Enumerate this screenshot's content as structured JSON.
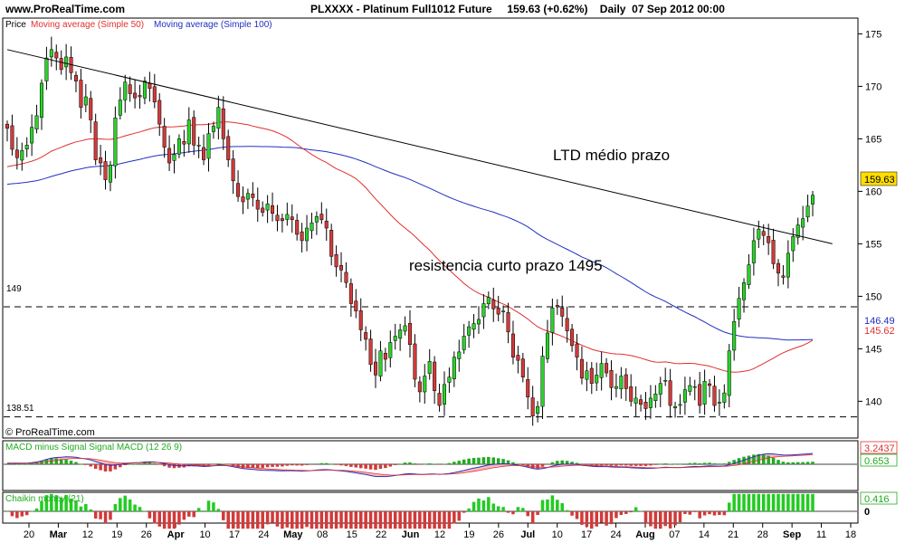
{
  "header": {
    "site": "www.ProRealTime.com",
    "instrument": "PLXXXX - Platinum Full1012 Future",
    "last": "159.63 (+0.62%)",
    "period": "Daily  07 Sep 2012 00:00"
  },
  "legend": {
    "price": "Price",
    "ma50": "Moving average (Simple 50)",
    "ma100": "Moving average (Simple 100)"
  },
  "watermark": "© ProRealTime.com",
  "annotations": {
    "trendline_label": "LTD médio prazo",
    "resistance_label": "resistencia curto prazo 1495"
  },
  "colors": {
    "up": "#2bd22b",
    "down": "#d23a3a",
    "ma50": "#e03030",
    "ma100": "#2030c0",
    "trendline": "#000000",
    "macd_line": "#3030c0",
    "signal_fill": "#f3a0a0",
    "hist": "#22aa22",
    "chaikin": "#22cc22",
    "price_tag": "#ffdd00"
  },
  "chart_data": [
    {
      "type": "candlestick",
      "title": "PLXXXX - Platinum Full1012 Future",
      "ylim": [
        136.5,
        176.5
      ],
      "y_ticks": [
        "140",
        "145",
        "150",
        "155",
        "160",
        "165",
        "170",
        "175"
      ],
      "x_ticks": [
        "20",
        "Mar",
        "12",
        "19",
        "26",
        "Apr",
        "10",
        "17",
        "24",
        "May",
        "08",
        "15",
        "22",
        "Jun",
        "12",
        "19",
        "26",
        "Jul",
        "10",
        "17",
        "24",
        "Aug",
        "07",
        "14",
        "21",
        "28",
        "Sep",
        "11",
        "18"
      ],
      "horizontal_lines": [
        149,
        138.51
      ],
      "horizontal_line_labels": [
        "149",
        "138.51"
      ],
      "price_labels": {
        "last": "159.63",
        "ma100": "146.49",
        "ma50": "145.62"
      },
      "trendline": {
        "from": [
          0,
          173.5
        ],
        "to": [
          168,
          155
        ]
      },
      "ohlc_close": [
        166.0,
        164.0,
        163.2,
        163.9,
        164.4,
        166.1,
        167.2,
        170.3,
        172.7,
        173.5,
        172.7,
        171.6,
        172.8,
        171.3,
        170.5,
        168.0,
        169.0,
        166.8,
        163.0,
        162.7,
        161.1,
        162.5,
        167.0,
        168.7,
        170.4,
        169.3,
        168.9,
        169.0,
        170.5,
        169.8,
        168.5,
        166.4,
        164.2,
        162.7,
        163.5,
        165.0,
        164.5,
        166.8,
        164.4,
        164.4,
        163.0,
        165.5,
        166.2,
        168.0,
        165.0,
        163.0,
        161.0,
        159.5,
        159.0,
        159.8,
        159.4,
        158.3,
        158.0,
        158.8,
        157.9,
        157.2,
        157.2,
        157.8,
        157.3,
        155.9,
        155.3,
        156.5,
        157.0,
        157.6,
        157.3,
        156.5,
        153.8,
        152.8,
        152.5,
        151.3,
        149.3,
        148.6,
        146.8,
        145.9,
        143.5,
        142.5,
        144.8,
        144.0,
        145.6,
        146.2,
        146.8,
        147.2,
        145.4,
        142.1,
        140.9,
        142.4,
        143.8,
        141.0,
        139.6,
        141.6,
        142.3,
        144.2,
        144.7,
        146.2,
        147.1,
        147.4,
        147.8,
        149.3,
        149.9,
        148.8,
        148.3,
        148.6,
        146.6,
        144.2,
        143.9,
        142.3,
        140.4,
        138.6,
        139.5,
        144.3,
        146.5,
        148.9,
        149.0,
        148.1,
        146.7,
        145.3,
        144.2,
        142.2,
        142.9,
        141.7,
        142.5,
        143.6,
        142.7,
        141.3,
        141.4,
        142.4,
        141.2,
        140.0,
        140.3,
        139.7,
        139.3,
        140.3,
        140.7,
        141.7,
        142.0,
        139.6,
        139.5,
        139.7,
        141.1,
        141.5,
        141.4,
        139.6,
        141.9,
        141.5,
        139.6,
        139.9,
        140.8,
        144.8,
        147.6,
        149.8,
        151.3,
        153.0,
        155.3,
        156.4,
        155.8,
        155.1,
        153.1,
        152.2,
        151.8,
        154.1,
        155.7,
        156.8,
        157.4,
        158.6,
        159.63
      ],
      "macd_labels": {
        "title": "MACD minus Signal Signal MACD (12 26 9)",
        "v1": "3.2437",
        "v2": "0.653"
      },
      "chaikin_labels": {
        "title": "Chaikin money (21)",
        "v1": "0.416",
        "zero": "0"
      }
    }
  ]
}
